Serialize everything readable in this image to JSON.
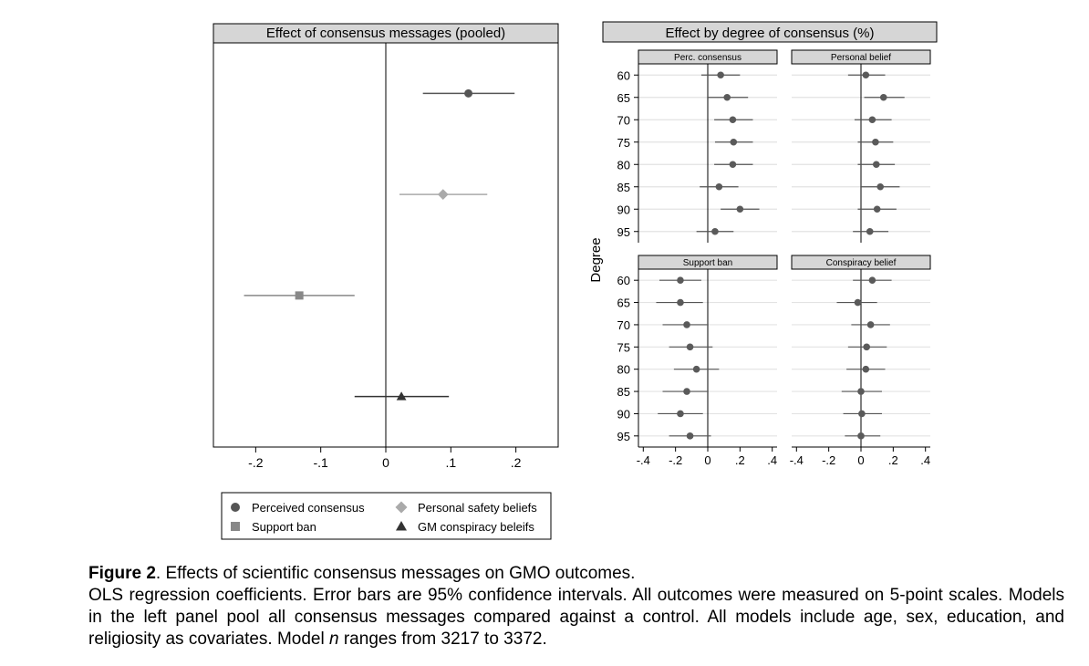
{
  "chart_data": [
    {
      "type": "scatter",
      "title": "Effect of consensus messages (pooled)",
      "xlim": [
        -0.265,
        0.265
      ],
      "xticks": [
        -0.2,
        -0.1,
        0,
        0.1,
        0.2
      ],
      "xtick_labels": [
        "-.2",
        "-.1",
        "0",
        ".1",
        ".2"
      ],
      "reference_line_x": 0,
      "series": [
        {
          "name": "Perceived consensus",
          "marker": "circle",
          "color": "#555555",
          "estimate": 0.127,
          "ci": [
            0.057,
            0.198
          ]
        },
        {
          "name": "Personal safety beliefs",
          "marker": "diamond",
          "color": "#aaaaaa",
          "estimate": 0.088,
          "ci": [
            0.021,
            0.156
          ]
        },
        {
          "name": "Support ban",
          "marker": "square",
          "color": "#888888",
          "estimate": -0.133,
          "ci": [
            -0.218,
            -0.048
          ]
        },
        {
          "name": "GM conspiracy beleifs",
          "marker": "triangle",
          "color": "#333333",
          "estimate": 0.024,
          "ci": [
            -0.048,
            0.097
          ]
        }
      ],
      "legend": {
        "position": "bottom",
        "entries": [
          "Perceived consensus",
          "Personal safety beliefs",
          "Support ban",
          "GM conspiracy beleifs"
        ]
      }
    },
    {
      "type": "scatter",
      "title": "Effect by degree of consensus (%)",
      "ylabel": "Degree",
      "categories": [
        "60",
        "65",
        "70",
        "75",
        "80",
        "85",
        "90",
        "95"
      ],
      "xlim": [
        -0.43,
        0.43
      ],
      "xticks": [
        -0.4,
        -0.2,
        0,
        0.2,
        0.4
      ],
      "xtick_labels": [
        "-.4",
        "-.2",
        "0",
        ".2",
        ".4"
      ],
      "reference_line_x": 0,
      "grid": "horizontal",
      "panels": [
        {
          "name": "Perc. consensus",
          "estimates": [
            0.08,
            0.12,
            0.155,
            0.16,
            0.155,
            0.07,
            0.2,
            0.045
          ],
          "ci_low": [
            -0.04,
            0.0,
            0.04,
            0.045,
            0.04,
            -0.05,
            0.08,
            -0.07
          ],
          "ci_high": [
            0.2,
            0.25,
            0.28,
            0.28,
            0.28,
            0.19,
            0.32,
            0.16
          ]
        },
        {
          "name": "Personal belief",
          "estimates": [
            0.03,
            0.14,
            0.07,
            0.09,
            0.095,
            0.12,
            0.1,
            0.055
          ],
          "ci_low": [
            -0.08,
            0.02,
            -0.04,
            -0.02,
            -0.02,
            0.0,
            -0.02,
            -0.05
          ],
          "ci_high": [
            0.15,
            0.27,
            0.19,
            0.2,
            0.21,
            0.24,
            0.22,
            0.17
          ]
        },
        {
          "name": "Support ban",
          "estimates": [
            -0.17,
            -0.17,
            -0.13,
            -0.11,
            -0.07,
            -0.13,
            -0.17,
            -0.11
          ],
          "ci_low": [
            -0.3,
            -0.32,
            -0.28,
            -0.24,
            -0.21,
            -0.28,
            -0.31,
            -0.24
          ],
          "ci_high": [
            -0.04,
            -0.03,
            0.0,
            0.03,
            0.07,
            0.0,
            -0.03,
            0.02
          ]
        },
        {
          "name": "Conspiracy belief",
          "estimates": [
            0.07,
            -0.02,
            0.06,
            0.035,
            0.03,
            0.0,
            0.005,
            0.0
          ],
          "ci_low": [
            -0.05,
            -0.15,
            -0.06,
            -0.08,
            -0.09,
            -0.12,
            -0.11,
            -0.1
          ],
          "ci_high": [
            0.19,
            0.1,
            0.18,
            0.16,
            0.15,
            0.13,
            0.13,
            0.12
          ]
        }
      ]
    }
  ],
  "caption": {
    "label": "Figure 2",
    "title_rest": ". Effects of scientific consensus messages on GMO outcomes.",
    "body_before_n": "OLS regression coefficients. Error bars are 95% confidence intervals. All outcomes were measured on 5-point scales. Models in the left panel pool all consensus messages compared against a control. All models include age, sex, education, and religiosity as covariates. Model ",
    "n_symbol": "n",
    "body_after_n": " ranges from 3217 to 3372."
  }
}
